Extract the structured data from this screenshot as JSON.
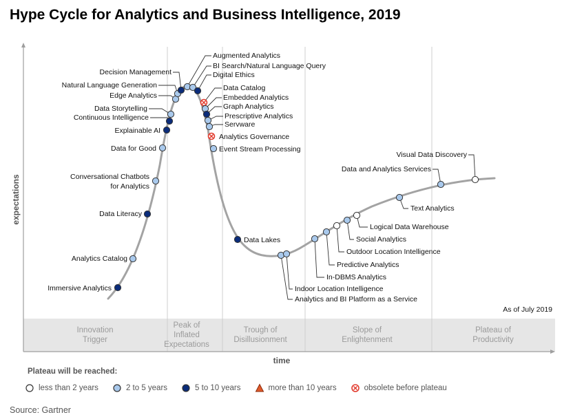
{
  "title": "Hype Cycle for Analytics and Business Intelligence, 2019",
  "as_of": "As of July 2019",
  "source": "Source: Gartner",
  "colors": {
    "curve": "#9e9e9e",
    "band": "#e6e6e6",
    "less_than_2": "#ffffff",
    "two_to_5": "#a9c9ec",
    "five_to_10": "#0b2c7a",
    "more_than_10": "#e05a2b",
    "obsolete": "#e23b2e"
  },
  "legend": {
    "heading": "Plateau will be reached:",
    "items": [
      {
        "label": "less than 2 years",
        "key": "less_than_2"
      },
      {
        "label": "2 to 5 years",
        "key": "two_to_5"
      },
      {
        "label": "5 to 10 years",
        "key": "five_to_10"
      },
      {
        "label": "more than 10 years",
        "key": "more_than_10"
      },
      {
        "label": "obsolete before plateau",
        "key": "obsolete"
      }
    ]
  },
  "chart_data": {
    "type": "scatter",
    "title": "Hype Cycle for Analytics and Business Intelligence, 2019",
    "xlabel": "time",
    "ylabel": "expectations",
    "phases": [
      [
        "Innovation",
        "Trigger"
      ],
      [
        "Peak of",
        "Inflated",
        "Expectations"
      ],
      [
        "Trough of",
        "Disillusionment"
      ],
      [
        "Slope of",
        "Enlightenment"
      ],
      [
        "Plateau of",
        "Productivity"
      ]
    ],
    "points": [
      {
        "name": "Immersive Analytics",
        "cat": "five_to_10"
      },
      {
        "name": "Analytics Catalog",
        "cat": "two_to_5"
      },
      {
        "name": "Data Literacy",
        "cat": "five_to_10"
      },
      {
        "name": "Conversational Chatbots for Analytics",
        "cat": "two_to_5"
      },
      {
        "name": "Data for Good",
        "cat": "two_to_5"
      },
      {
        "name": "Explainable AI",
        "cat": "five_to_10"
      },
      {
        "name": "Continuous Intelligence",
        "cat": "five_to_10"
      },
      {
        "name": "Data Storytelling",
        "cat": "two_to_5"
      },
      {
        "name": "Edge Analytics",
        "cat": "two_to_5"
      },
      {
        "name": "Natural Language Generation",
        "cat": "two_to_5"
      },
      {
        "name": "Decision Management",
        "cat": "five_to_10"
      },
      {
        "name": "Augmented Analytics",
        "cat": "two_to_5"
      },
      {
        "name": "BI Search/Natural Language Query",
        "cat": "two_to_5"
      },
      {
        "name": "Digital Ethics",
        "cat": "five_to_10"
      },
      {
        "name": "Data Catalog",
        "cat": "obsolete"
      },
      {
        "name": "Embedded Analytics",
        "cat": "two_to_5"
      },
      {
        "name": "Graph Analytics",
        "cat": "five_to_10"
      },
      {
        "name": "Prescriptive Analytics",
        "cat": "two_to_5"
      },
      {
        "name": "Servware",
        "cat": "two_to_5"
      },
      {
        "name": "Analytics Governance",
        "cat": "obsolete"
      },
      {
        "name": "Event Stream Processing",
        "cat": "two_to_5"
      },
      {
        "name": "Data Lakes",
        "cat": "five_to_10"
      },
      {
        "name": "Analytics and BI Platform as a Service",
        "cat": "two_to_5"
      },
      {
        "name": "Indoor Location Intelligence",
        "cat": "two_to_5"
      },
      {
        "name": "In-DBMS Analytics",
        "cat": "two_to_5"
      },
      {
        "name": "Predictive Analytics",
        "cat": "two_to_5"
      },
      {
        "name": "Outdoor Location Intelligence",
        "cat": "less_than_2"
      },
      {
        "name": "Social Analytics",
        "cat": "two_to_5"
      },
      {
        "name": "Logical Data Warehouse",
        "cat": "less_than_2"
      },
      {
        "name": "Text Analytics",
        "cat": "two_to_5"
      },
      {
        "name": "Data and Analytics Services",
        "cat": "two_to_5"
      },
      {
        "name": "Visual Data Discovery",
        "cat": "less_than_2"
      }
    ]
  }
}
